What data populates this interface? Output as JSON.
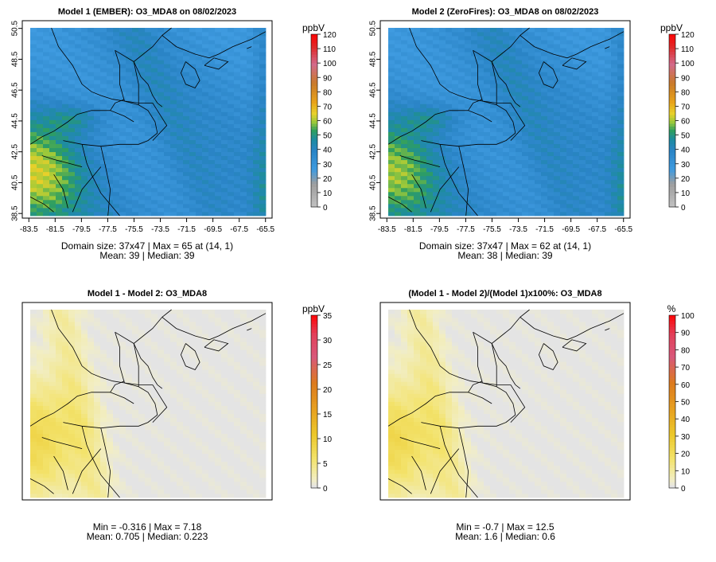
{
  "chart_data": [
    {
      "type": "heatmap",
      "title": "Model 1 (EMBER): O3_MDA8 on 08/02/2023",
      "variable": "O3_MDA8",
      "date": "08/02/2023",
      "x_ticks": [
        "-83.5",
        "-81.5",
        "-79.5",
        "-77.5",
        "-75.5",
        "-73.5",
        "-71.5",
        "-69.5",
        "-67.5",
        "-65.5"
      ],
      "y_ticks": [
        "38.5",
        "40.5",
        "42.5",
        "44.5",
        "46.5",
        "48.5",
        "50.5"
      ],
      "xlim": [
        -84,
        -65
      ],
      "ylim": [
        38.2,
        51
      ],
      "colorbar": {
        "label": "ppbV",
        "ticks": [
          "0",
          "10",
          "20",
          "30",
          "40",
          "50",
          "60",
          "70",
          "80",
          "90",
          "100",
          "110",
          "120"
        ],
        "range": [
          0,
          120
        ],
        "palette": "ozone"
      },
      "field": {
        "min": 25,
        "max": 65,
        "max_cell": [
          14,
          1
        ],
        "west_enhancement": 26
      },
      "stats": {
        "line1": "Domain size: 37x47 | Max = 65 at (14, 1)",
        "line2": "Mean: 39 |  Median: 39"
      }
    },
    {
      "type": "heatmap",
      "title": "Model 2 (ZeroFires): O3_MDA8 on 08/02/2023",
      "variable": "O3_MDA8",
      "date": "08/02/2023",
      "x_ticks": [
        "-83.5",
        "-81.5",
        "-79.5",
        "-77.5",
        "-75.5",
        "-73.5",
        "-71.5",
        "-69.5",
        "-67.5",
        "-65.5"
      ],
      "y_ticks": [
        "38.5",
        "40.5",
        "42.5",
        "44.5",
        "46.5",
        "48.5",
        "50.5"
      ],
      "xlim": [
        -84,
        -65
      ],
      "ylim": [
        38.2,
        51
      ],
      "colorbar": {
        "label": "ppbV",
        "ticks": [
          "0",
          "10",
          "20",
          "30",
          "40",
          "50",
          "60",
          "70",
          "80",
          "90",
          "100",
          "110",
          "120"
        ],
        "range": [
          0,
          120
        ],
        "palette": "ozone"
      },
      "field": {
        "min": 25,
        "max": 62,
        "max_cell": [
          14,
          1
        ],
        "west_enhancement": 22
      },
      "stats": {
        "line1": "Domain size: 37x47 | Max = 62 at (14, 1)",
        "line2": "Mean: 38 |  Median: 39"
      }
    },
    {
      "type": "heatmap",
      "title": "Model 1 - Model 2: O3_MDA8",
      "variable": "O3_MDA8",
      "xlim": [
        -84,
        -65
      ],
      "ylim": [
        38.2,
        51
      ],
      "colorbar": {
        "label": "ppbV",
        "ticks": [
          "0",
          "5",
          "10",
          "15",
          "20",
          "25",
          "30",
          "35"
        ],
        "range": [
          0,
          35
        ],
        "palette": "diff"
      },
      "field": {
        "min": -0.316,
        "max": 7.18
      },
      "stats": {
        "line1": "Min = -0.316 | Max = 7.18",
        "line2": "Mean: 0.705 |  Median: 0.223"
      }
    },
    {
      "type": "heatmap",
      "title": "(Model 1 - Model 2)/(Model 1)x100%: O3_MDA8",
      "variable": "O3_MDA8",
      "xlim": [
        -84,
        -65
      ],
      "ylim": [
        38.2,
        51
      ],
      "colorbar": {
        "label": "%",
        "ticks": [
          "0",
          "10",
          "20",
          "30",
          "40",
          "50",
          "60",
          "70",
          "80",
          "90",
          "100"
        ],
        "range": [
          0,
          100
        ],
        "palette": "diff"
      },
      "field": {
        "min": -0.7,
        "max": 12.5
      },
      "stats": {
        "line1": "Min = -0.7 | Max = 12.5",
        "line2": "Mean: 1.6 |  Median: 0.6"
      }
    }
  ]
}
